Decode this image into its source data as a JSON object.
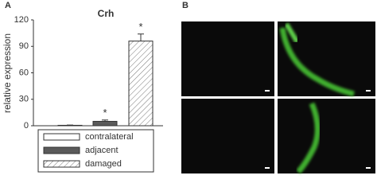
{
  "panel_labels": [
    "A",
    "B"
  ],
  "chart_data": {
    "type": "bar",
    "title": "Crh",
    "y_label": "relative expression",
    "categories": [
      "contralateral",
      "adjacent",
      "damaged"
    ],
    "values": [
      0.5,
      5,
      96
    ],
    "errors": [
      0.3,
      1.5,
      8
    ],
    "significance": [
      null,
      "*",
      "*"
    ],
    "fills": [
      "#ffffff",
      "#5a5a5a",
      "hatch"
    ],
    "ylim": [
      0,
      120
    ],
    "yticks": [
      0,
      30,
      60,
      90,
      120
    ],
    "grid": false
  }
}
